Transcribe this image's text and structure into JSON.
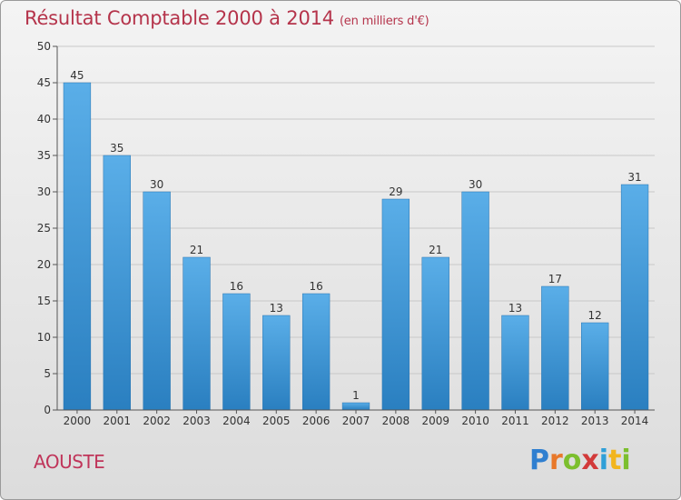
{
  "header": {
    "title": "Résultat Comptable 2000 à 2014",
    "unit": "(en milliers d'€)"
  },
  "footer": {
    "commune": "AOUSTE",
    "logo_letters": [
      {
        "ch": "P",
        "color": "#2f7fd0"
      },
      {
        "ch": "r",
        "color": "#e8782a"
      },
      {
        "ch": "o",
        "color": "#7cbf2e"
      },
      {
        "ch": "x",
        "color": "#d23a3a"
      },
      {
        "ch": "i",
        "color": "#2f9fd8"
      },
      {
        "ch": "t",
        "color": "#f2b51e"
      },
      {
        "ch": "i",
        "color": "#7cbf2e"
      }
    ]
  },
  "colors": {
    "bar_light": "#5aaee8",
    "bar_dark": "#2a7fc0",
    "grid": "#c8c8c8",
    "axis": "#555555"
  },
  "chart_data": {
    "type": "bar",
    "title": "Résultat Comptable 2000 à 2014",
    "categories": [
      "2000",
      "2001",
      "2002",
      "2003",
      "2004",
      "2005",
      "2006",
      "2007",
      "2008",
      "2009",
      "2010",
      "2011",
      "2012",
      "2013",
      "2014"
    ],
    "values": [
      45,
      35,
      30,
      21,
      16,
      13,
      16,
      1,
      29,
      21,
      30,
      13,
      17,
      12,
      31
    ],
    "ylim": [
      0,
      50
    ],
    "yticks": [
      0,
      5,
      10,
      15,
      20,
      25,
      30,
      35,
      40,
      45,
      50
    ],
    "grid": true,
    "xlabel": "",
    "ylabel": ""
  }
}
